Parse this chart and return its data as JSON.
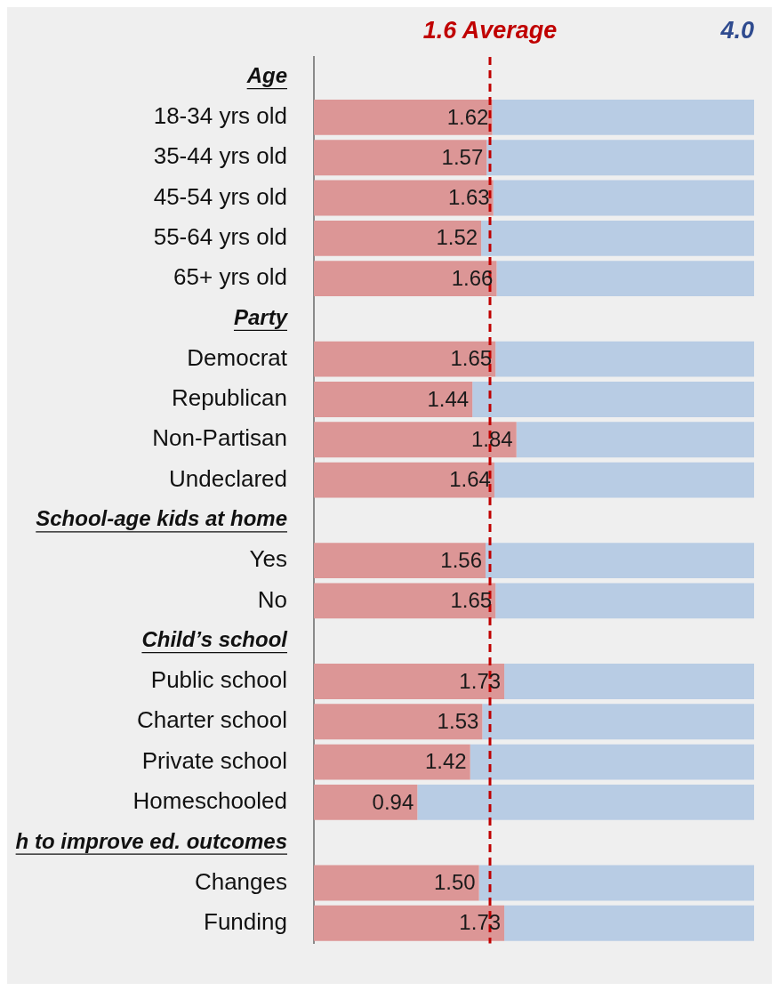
{
  "chart_data": {
    "type": "bar",
    "orientation": "horizontal",
    "stacked": true,
    "categories": [
      "Age",
      "18-34 yrs old",
      "35-44 yrs old",
      "45-54 yrs old",
      "55-64 yrs old",
      "65+ yrs old",
      "Party",
      "Democrat",
      "Republican",
      "Non-Partisan",
      "Undeclared",
      "School-age kids at home",
      "Yes",
      "No",
      "Child’s school",
      "Public school",
      "Charter school",
      "Private school",
      "Homeschooled",
      "h to improve ed. outcomes",
      "Changes",
      "Funding"
    ],
    "series": [
      {
        "color": "#dc9696",
        "values": [
          null,
          1.62,
          1.57,
          1.63,
          1.52,
          1.66,
          null,
          1.65,
          1.44,
          1.84,
          1.64,
          null,
          1.56,
          1.65,
          null,
          1.73,
          1.53,
          1.42,
          0.94,
          null,
          1.5,
          1.73
        ],
        "value_labels": [
          null,
          "1.62",
          "1.57",
          "1.63",
          "1.52",
          "1.66",
          null,
          "1.65",
          "1.44",
          "1.84",
          "1.64",
          null,
          "1.56",
          "1.65",
          null,
          "1.73",
          "1.53",
          "1.42",
          "0.94",
          null,
          "1.50",
          "1.73"
        ]
      },
      {
        "color": "#b8cce4",
        "values": [
          null,
          2.38,
          2.43,
          2.37,
          2.48,
          2.34,
          null,
          2.35,
          2.56,
          2.16,
          2.36,
          null,
          2.44,
          2.35,
          null,
          2.27,
          2.47,
          2.58,
          3.06,
          null,
          2.5,
          2.27
        ]
      }
    ],
    "xlim": [
      0,
      4
    ],
    "annotations": [
      "4.0"
    ],
    "ref_lines": [
      {
        "axis": "x",
        "value": 1.6,
        "label": "1.6 Average",
        "color": "#c00000",
        "line_style": "dashed"
      }
    ],
    "legend": false
  }
}
